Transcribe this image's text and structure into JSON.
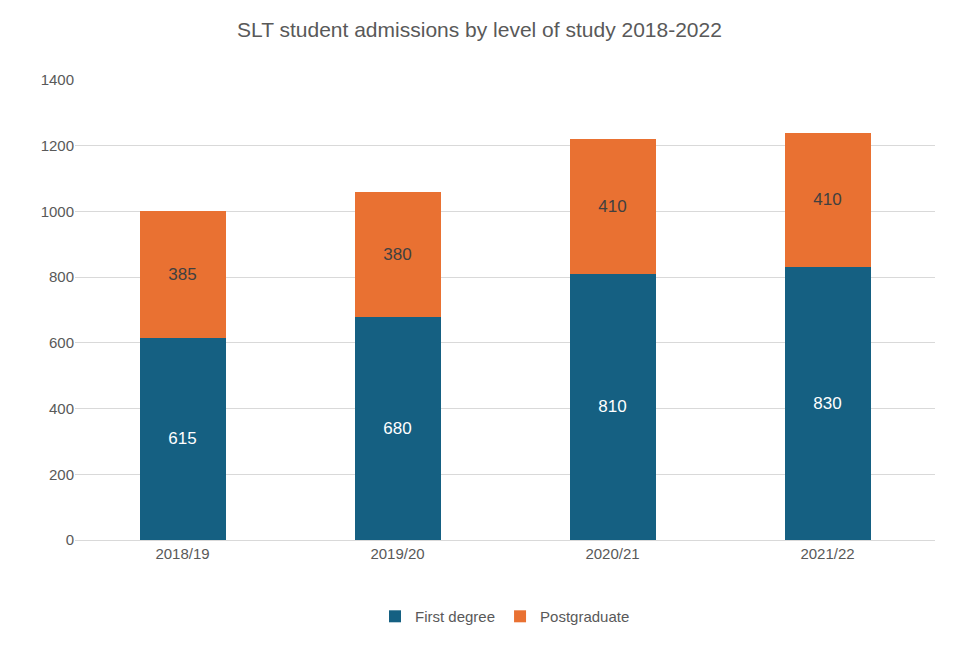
{
  "chart_data": {
    "type": "bar",
    "title": "SLT student admissions by level of study 2018-2022",
    "categories": [
      "2018/19",
      "2019/20",
      "2020/21",
      "2021/22"
    ],
    "series": [
      {
        "name": "First degree",
        "color": "#156082",
        "values": [
          615,
          680,
          810,
          830
        ]
      },
      {
        "name": "Postgraduate",
        "color": "#E97132",
        "values": [
          385,
          380,
          410,
          410
        ]
      }
    ],
    "stacked": true,
    "data_labels": true,
    "ylim": [
      0,
      1400
    ],
    "yticks": [
      0,
      200,
      400,
      600,
      800,
      1000,
      1200,
      1400
    ],
    "grid": true,
    "legend": "bottom"
  }
}
